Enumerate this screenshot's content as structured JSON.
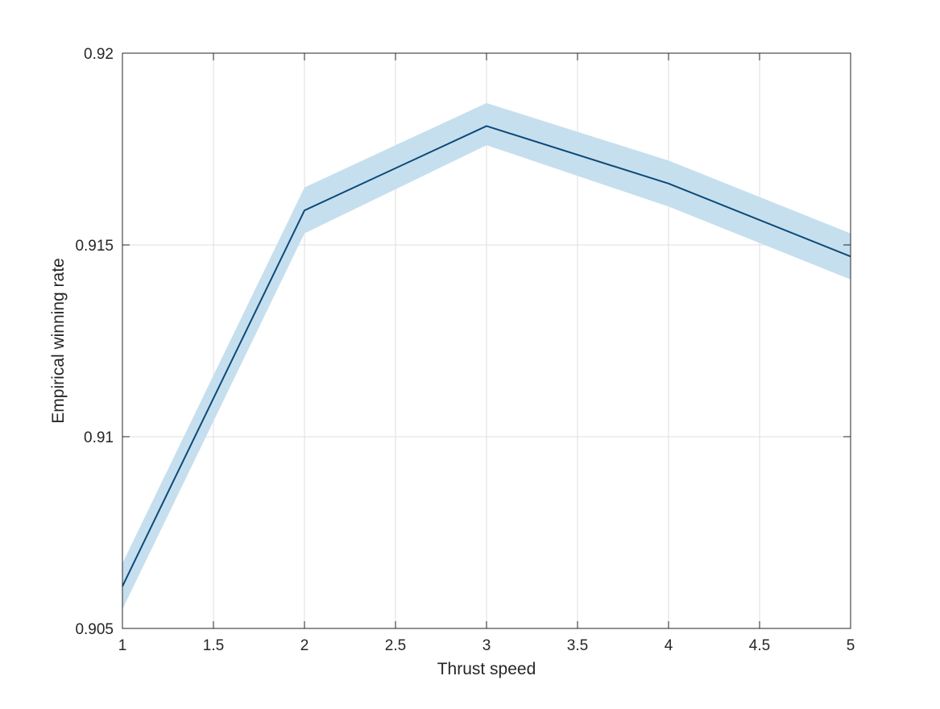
{
  "chart_data": {
    "type": "line",
    "title": "",
    "xlabel": "Thrust speed",
    "ylabel": "Empirical winning rate",
    "xlim": [
      1,
      5
    ],
    "ylim": [
      0.905,
      0.92
    ],
    "x_ticks": [
      1,
      1.5,
      2,
      2.5,
      3,
      3.5,
      4,
      4.5,
      5
    ],
    "x_tick_labels": [
      "1",
      "1.5",
      "2",
      "2.5",
      "3",
      "3.5",
      "4",
      "4.5",
      "5"
    ],
    "y_ticks": [
      0.905,
      0.91,
      0.915,
      0.92
    ],
    "y_tick_labels": [
      "0.905",
      "0.91",
      "0.915",
      "0.92"
    ],
    "grid": true,
    "legend": "none",
    "series": [
      {
        "x": [
          1,
          2,
          3,
          4,
          5
        ],
        "y": [
          0.9061,
          0.9159,
          0.9181,
          0.9166,
          0.9147
        ],
        "lower": [
          0.9055,
          0.9153,
          0.9176,
          0.916,
          0.9141
        ],
        "upper": [
          0.9067,
          0.9165,
          0.9187,
          0.9172,
          0.9153
        ],
        "line_color": "#0c4a78",
        "band_color": "#c6dfef"
      }
    ]
  }
}
